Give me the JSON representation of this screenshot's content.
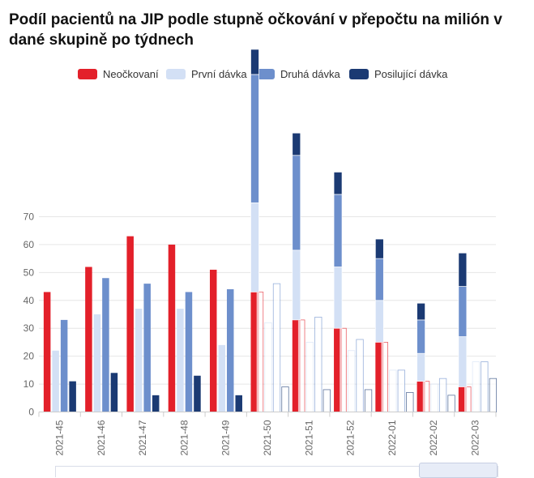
{
  "header": {
    "title": "Podíl pacientů na JIP podle stupně očkování v přepočtu na milión v dané skupině po týdnech"
  },
  "legend": [
    {
      "label": "Neočkovaní",
      "color": "#e3202a"
    },
    {
      "label": "První dávka",
      "color": "#d3e0f5"
    },
    {
      "label": "Druhá dávka",
      "color": "#6d8fcc"
    },
    {
      "label": "Posilující dávka",
      "color": "#1b3a73"
    }
  ],
  "chart_data": {
    "type": "bar",
    "title": "Podíl pacientů na JIP podle stupně očkování v přepočtu na milión v dané skupině po týdnech",
    "xlabel": "",
    "ylabel": "",
    "ylim": [
      0,
      70
    ],
    "yticks": [
      0,
      10,
      20,
      30,
      40,
      50,
      60,
      70
    ],
    "grid": true,
    "legend_position": "top",
    "categories": [
      "2021-45",
      "2021-46",
      "2021-47",
      "2021-48",
      "2021-49",
      "2021-50",
      "2021-51",
      "2021-52",
      "2022-01",
      "2022-02",
      "2022-03"
    ],
    "series": [
      {
        "name": "Neočkovaní",
        "color": "#e3202a",
        "values": [
          43,
          52,
          63,
          60,
          51,
          43,
          33,
          30,
          25,
          11,
          9
        ]
      },
      {
        "name": "První dávka",
        "color": "#d3e0f5",
        "values": [
          22,
          35,
          37,
          37,
          24,
          32,
          25,
          22,
          15,
          10,
          18
        ]
      },
      {
        "name": "Druhá dávka",
        "color": "#6d8fcc",
        "values": [
          33,
          48,
          46,
          43,
          44,
          46,
          34,
          26,
          15,
          12,
          18
        ]
      },
      {
        "name": "Posilující dávka",
        "color": "#1b3a73",
        "values": [
          11,
          14,
          6,
          13,
          6,
          9,
          8,
          8,
          7,
          6,
          12
        ]
      }
    ],
    "transition_weeks": [
      "2021-50",
      "2021-51",
      "2021-52",
      "2022-01",
      "2022-02",
      "2022-03"
    ]
  }
}
